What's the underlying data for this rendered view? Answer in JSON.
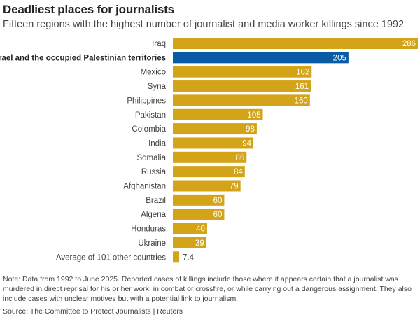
{
  "title": "Deadliest places for journalists",
  "subtitle": "Fifteen regions with the highest number of journalist and media worker killings since 1992",
  "note": "Note: Data from 1992 to June 2025. Reported cases of killings include those where it appears certain that a journalist was murdered in direct reprisal for his or her work, in combat or crossfire, or while carrying out a dangerous assignment. They also include cases with unclear motives but with a potential link to journalism.",
  "source": "Source: The Committee to Protect Journalists | Reuters",
  "colors": {
    "bar": "#d4a418",
    "highlight": "#0a5ba6"
  },
  "chart_data": {
    "type": "bar",
    "orientation": "horizontal",
    "categories": [
      "Iraq",
      "Israel and the occupied Palestinian territories",
      "Mexico",
      "Syria",
      "Philippines",
      "Pakistan",
      "Colombia",
      "India",
      "Somalia",
      "Russia",
      "Afghanistan",
      "Brazil",
      "Algeria",
      "Honduras",
      "Ukraine",
      "Average of 101 other countries"
    ],
    "values": [
      286,
      205,
      162,
      161,
      160,
      105,
      98,
      94,
      86,
      84,
      79,
      60,
      60,
      40,
      39,
      7.4
    ],
    "value_labels": [
      "286",
      "205",
      "162",
      "161",
      "160",
      "105",
      "98",
      "94",
      "86",
      "84",
      "79",
      "60",
      "60",
      "40",
      "39",
      "7.4"
    ],
    "highlight": "Israel and the occupied Palestinian territories",
    "xlim": [
      0,
      286
    ],
    "grid": false,
    "legend": "none"
  }
}
